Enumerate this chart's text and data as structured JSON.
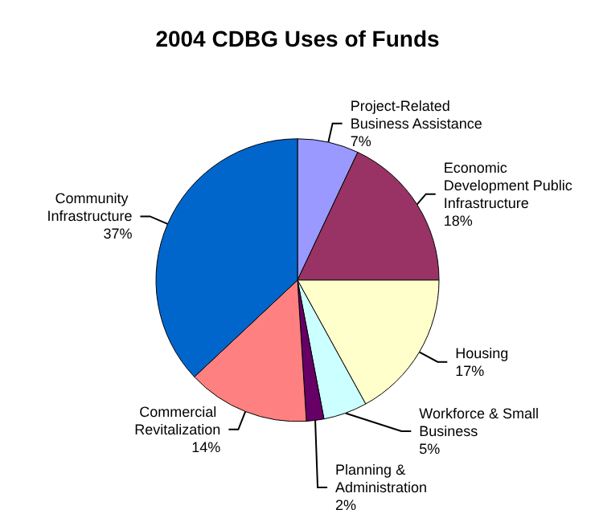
{
  "chart_data": {
    "type": "pie",
    "title": "2004 CDBG Uses of Funds",
    "categories": [
      "Project-Related Business Assistance",
      "Economic Development Public Infrastructure",
      "Housing",
      "Workforce & Small Business",
      "Planning & Administration",
      "Commercial Revitalization",
      "Community Infrastructure"
    ],
    "values": [
      7,
      18,
      17,
      5,
      2,
      14,
      37
    ],
    "value_labels": [
      "7%",
      "18%",
      "17%",
      "5%",
      "2%",
      "14%",
      "37%"
    ],
    "colors": [
      "#9999ff",
      "#993366",
      "#ffffcc",
      "#ccffff",
      "#660066",
      "#ff8080",
      "#0066cc"
    ],
    "legend": false
  }
}
